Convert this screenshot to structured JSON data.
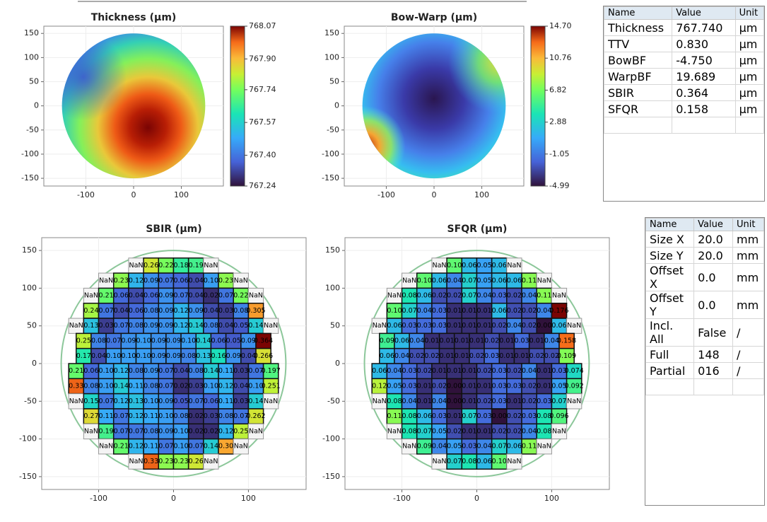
{
  "plots": [
    {
      "title": "Thickness (µm)",
      "xlim": [
        -188,
        188
      ],
      "ylim": [
        -166,
        165
      ],
      "xticks": [
        -100,
        0,
        100
      ],
      "yticks": [
        -150,
        -100,
        -50,
        0,
        50,
        100,
        150
      ],
      "colorbar_ticks": [
        767.24,
        {
          "value": 767.4,
          "label": "767.40"
        },
        767.57,
        767.74,
        {
          "value": 767.9,
          "label": "767.90"
        },
        768.07
      ]
    },
    {
      "title": "Bow-Warp (µm)",
      "xlim": [
        -188,
        188
      ],
      "ylim": [
        -166,
        165
      ],
      "xticks": [
        -100,
        0,
        100
      ],
      "yticks": [
        -150,
        -100,
        -50,
        0,
        50,
        100,
        150
      ],
      "colorbar_ticks": [
        -4.99,
        -1.05,
        2.88,
        6.82,
        10.76,
        {
          "value": 14.7,
          "label": "14.70"
        }
      ]
    },
    {
      "title": "SBIR (µm)",
      "xlim": [
        -176,
        177
      ],
      "ylim": [
        -167,
        167
      ],
      "xticks": [
        -100,
        0,
        100
      ],
      "yticks": [
        -150,
        -100,
        -50,
        0,
        50,
        100,
        150
      ],
      "die_rows": [
        [
          "NaN",
          "0.26",
          "0.22",
          "0.18",
          "0.19",
          "NaN"
        ],
        [
          "NaN",
          "0.23",
          "0.12",
          "0.09",
          "0.07",
          "0.06",
          "0.04",
          "0.10",
          "0.23",
          "NaN"
        ],
        [
          "NaN",
          "0.21",
          "0.06",
          "0.04",
          "0.06",
          "0.09",
          "0.07",
          "0.04",
          "0.02",
          "0.07",
          "0.22",
          "NaN"
        ],
        [
          "0.24",
          "0.07",
          "0.04",
          "0.06",
          "0.08",
          "0.09",
          "0.12",
          "0.09",
          "0.04",
          "0.03",
          "0.08",
          "0.305"
        ],
        [
          "NaN",
          "0.13",
          "0.03",
          "0.07",
          "0.08",
          "0.09",
          "0.09",
          "0.12",
          "0.14",
          "0.08",
          "0.04",
          "0.05",
          "0.14",
          "NaN"
        ],
        [
          "0.25",
          "0.08",
          "0.07",
          "0.09",
          "0.10",
          "0.09",
          "0.09",
          "0.10",
          "0.14",
          "0.06",
          "0.05",
          "0.09",
          "0.364"
        ],
        [
          "0.17",
          "0.04",
          "0.10",
          "0.10",
          "0.10",
          "0.09",
          "0.09",
          "0.08",
          "0.13",
          "0.16",
          "0.09",
          "0.04",
          "0.266"
        ],
        [
          "0.21",
          "0.06",
          "0.10",
          "0.12",
          "0.08",
          "0.09",
          "0.07",
          "0.04",
          "0.08",
          "0.14",
          "0.11",
          "0.03",
          "0.07",
          "0.197"
        ],
        [
          "0.33",
          "0.08",
          "0.10",
          "0.14",
          "0.11",
          "0.08",
          "0.07",
          "0.02",
          "0.03",
          "0.10",
          "0.12",
          "0.04",
          "0.10",
          "0.251"
        ],
        [
          "NaN",
          "0.15",
          "0.07",
          "0.12",
          "0.13",
          "0.10",
          "0.09",
          "0.05",
          "0.07",
          "0.06",
          "0.11",
          "0.03",
          "0.14",
          "NaN"
        ],
        [
          "0.27",
          "0.11",
          "0.07",
          "0.12",
          "0.11",
          "0.10",
          "0.08",
          "0.02",
          "0.03",
          "0.08",
          "0.07",
          "0.262"
        ],
        [
          "NaN",
          "0.19",
          "0.07",
          "0.07",
          "0.08",
          "0.09",
          "0.10",
          "0.02",
          "0.02",
          "0.12",
          "0.25",
          "NaN"
        ],
        [
          "NaN",
          "0.21",
          "0.12",
          "0.11",
          "0.07",
          "0.10",
          "0.07",
          "0.14",
          "0.30",
          "NaN"
        ],
        [
          "NaN",
          "0.33",
          "0.23",
          "0.23",
          "0.26",
          "NaN"
        ]
      ]
    },
    {
      "title": "SFQR (µm)",
      "xlim": [
        -176,
        177
      ],
      "ylim": [
        -167,
        167
      ],
      "xticks": [
        -100,
        0,
        100
      ],
      "yticks": [
        -150,
        -100,
        -50,
        0,
        50,
        100,
        150
      ],
      "die_rows": [
        [
          "NaN",
          "0.10",
          "0.06",
          "0.05",
          "0.06",
          "NaN"
        ],
        [
          "NaN",
          "0.10",
          "0.06",
          "0.04",
          "0.07",
          "0.05",
          "0.06",
          "0.06",
          "0.11",
          "NaN"
        ],
        [
          "NaN",
          "0.08",
          "0.06",
          "0.02",
          "0.02",
          "0.07",
          "0.04",
          "0.03",
          "0.02",
          "0.04",
          "0.11",
          "NaN"
        ],
        [
          "0.10",
          "0.07",
          "0.04",
          "0.03",
          "0.01",
          "0.01",
          "0.01",
          "0.06",
          "0.02",
          "0.02",
          "0.04",
          "0.176"
        ],
        [
          "NaN",
          "0.06",
          "0.03",
          "0.03",
          "0.03",
          "0.01",
          "0.01",
          "0.01",
          "0.02",
          "0.04",
          "0.02",
          "0.00",
          "0.06",
          "NaN"
        ],
        [
          "0.09",
          "0.06",
          "0.04",
          "0.01",
          "0.01",
          "0.01",
          "0.01",
          "0.02",
          "0.01",
          "0.03",
          "0.01",
          "0.04",
          "0.158"
        ],
        [
          "0.06",
          "0.04",
          "0.02",
          "0.02",
          "0.01",
          "0.01",
          "0.02",
          "0.03",
          "0.01",
          "0.01",
          "0.02",
          "0.02",
          "0.109"
        ],
        [
          "0.06",
          "0.04",
          "0.03",
          "0.02",
          "0.01",
          "0.01",
          "0.01",
          "0.02",
          "0.03",
          "0.02",
          "0.04",
          "0.01",
          "0.03",
          "0.074"
        ],
        [
          "0.12",
          "0.05",
          "0.03",
          "0.01",
          "0.02",
          "0.00",
          "0.01",
          "0.01",
          "0.03",
          "0.03",
          "0.02",
          "0.01",
          "0.05",
          "0.092"
        ],
        [
          "NaN",
          "0.08",
          "0.04",
          "0.01",
          "0.04",
          "0.00",
          "0.01",
          "0.02",
          "0.03",
          "0.01",
          "0.02",
          "0.03",
          "0.07",
          "NaN"
        ],
        [
          "0.11",
          "0.08",
          "0.06",
          "0.03",
          "0.01",
          "0.07",
          "0.03",
          "0.00",
          "0.02",
          "0.03",
          "0.08",
          "0.096"
        ],
        [
          "NaN",
          "0.08",
          "0.07",
          "0.05",
          "0.02",
          "0.01",
          "0.01",
          "0.02",
          "0.02",
          "0.04",
          "0.08",
          "NaN"
        ],
        [
          "NaN",
          "0.09",
          "0.04",
          "0.05",
          "0.03",
          "0.04",
          "0.07",
          "0.06",
          "0.11",
          "NaN"
        ],
        [
          "NaN",
          "0.07",
          "0.08",
          "0.06",
          "0.10",
          "NaN"
        ]
      ]
    }
  ],
  "tables": [
    {
      "header": [
        "Name",
        "Value",
        "Unit"
      ],
      "rows": [
        [
          "Thickness",
          "767.740",
          "µm"
        ],
        [
          "TTV",
          "0.830",
          "µm"
        ],
        [
          "BowBF",
          "-4.750",
          "µm"
        ],
        [
          "WarpBF",
          "19.689",
          "µm"
        ],
        [
          "SBIR",
          "0.364",
          "µm"
        ],
        [
          "SFQR",
          "0.158",
          "µm"
        ]
      ]
    },
    {
      "header": [
        "Name",
        "Value",
        "Unit"
      ],
      "rows": [
        [
          "Size X",
          "20.0",
          "mm"
        ],
        [
          "Size Y",
          "20.0",
          "mm"
        ],
        [
          "Offset X",
          "0.0",
          "mm"
        ],
        [
          "Offset Y",
          "0.0",
          "mm"
        ],
        [
          "Incl. All",
          "False",
          "/"
        ],
        [
          "Full",
          "148",
          "/"
        ],
        [
          "Partial",
          "016",
          "/"
        ]
      ]
    }
  ]
}
